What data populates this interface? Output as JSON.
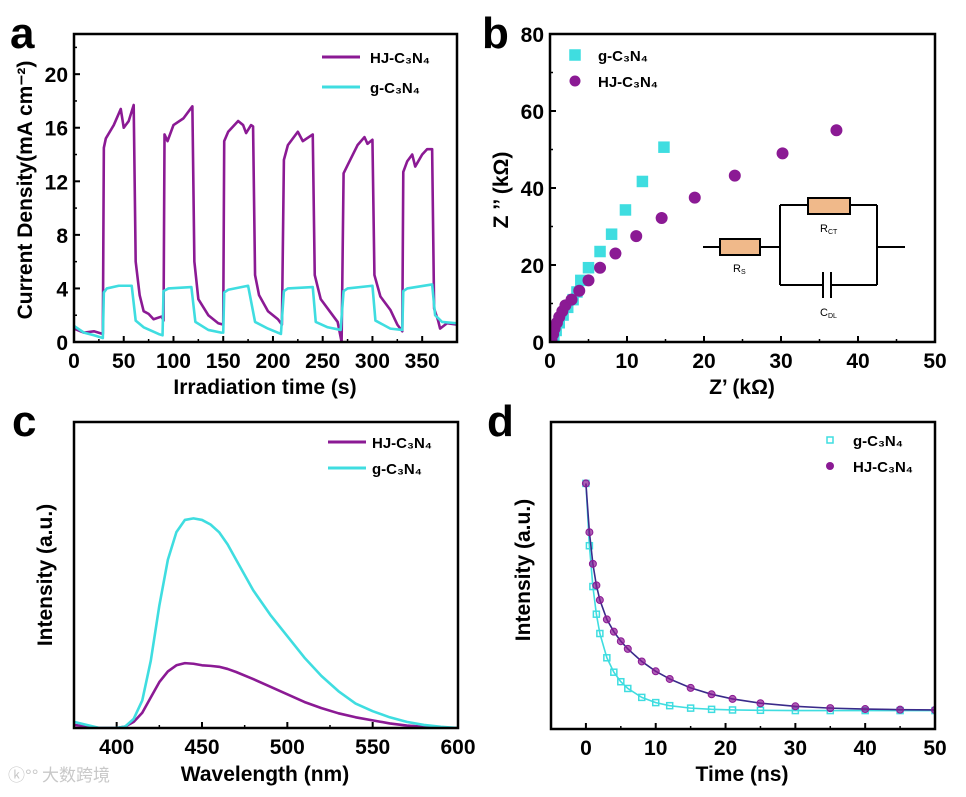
{
  "colors": {
    "hj": "#8b1a94",
    "g": "#3fdde0",
    "resistor": "#f0b98a",
    "fit_hj": "#3a2a8a"
  },
  "watermark": "大数跨境",
  "chart_data": [
    {
      "panel": "a",
      "type": "line",
      "xlabel": "Irradiation time (s)",
      "ylabel": "Current Density(mA cm⁻²)",
      "xlim": [
        0,
        385
      ],
      "ylim": [
        0,
        23
      ],
      "xticks": [
        "0",
        "50",
        "100",
        "150",
        "200",
        "250",
        "300",
        "350"
      ],
      "yticks": [
        "0",
        "4",
        "8",
        "12",
        "16",
        "20"
      ],
      "legend_position": "top-right",
      "series": [
        {
          "name": "HJ-C₃N₄",
          "key": "hj",
          "style": "line",
          "points": [
            [
              0,
              1.0
            ],
            [
              10,
              0.7
            ],
            [
              20,
              0.8
            ],
            [
              29,
              0.6
            ],
            [
              30,
              14.5
            ],
            [
              32,
              15.2
            ],
            [
              40,
              16.2
            ],
            [
              47,
              17.4
            ],
            [
              50,
              16.0
            ],
            [
              55,
              16.5
            ],
            [
              60,
              17.7
            ],
            [
              62,
              6
            ],
            [
              66,
              3.5
            ],
            [
              70,
              2.3
            ],
            [
              75,
              2.1
            ],
            [
              80,
              1.7
            ],
            [
              88,
              1.9
            ],
            [
              90,
              1.6
            ],
            [
              91,
              15.5
            ],
            [
              94,
              15.0
            ],
            [
              100,
              16.2
            ],
            [
              110,
              16.7
            ],
            [
              119,
              17.6
            ],
            [
              121,
              6
            ],
            [
              125,
              3.2
            ],
            [
              135,
              2.0
            ],
            [
              145,
              1.4
            ],
            [
              150,
              1.3
            ],
            [
              151,
              15.0
            ],
            [
              155,
              15.7
            ],
            [
              165,
              16.5
            ],
            [
              170,
              16.2
            ],
            [
              173,
              15.6
            ],
            [
              178,
              16.2
            ],
            [
              180,
              16.1
            ],
            [
              182,
              5
            ],
            [
              186,
              3.5
            ],
            [
              195,
              2.3
            ],
            [
              205,
              1.7
            ],
            [
              209,
              1.3
            ],
            [
              211,
              13.6
            ],
            [
              215,
              14.7
            ],
            [
              225,
              15.7
            ],
            [
              230,
              15.0
            ],
            [
              240,
              15.5
            ],
            [
              242,
              5
            ],
            [
              248,
              3.2
            ],
            [
              258,
              2.2
            ],
            [
              265,
              1.5
            ],
            [
              269,
              0.0
            ],
            [
              271,
              12.6
            ],
            [
              275,
              13.2
            ],
            [
              285,
              14.7
            ],
            [
              292,
              15.3
            ],
            [
              295,
              14.8
            ],
            [
              300,
              15.1
            ],
            [
              302,
              5
            ],
            [
              308,
              3.4
            ],
            [
              318,
              2.4
            ],
            [
              325,
              1.3
            ],
            [
              330,
              0.8
            ],
            [
              331,
              12.7
            ],
            [
              335,
              13.5
            ],
            [
              340,
              14.0
            ],
            [
              343,
              13.1
            ],
            [
              350,
              14.0
            ],
            [
              355,
              14.4
            ],
            [
              360,
              14.4
            ],
            [
              362,
              2.5
            ],
            [
              366,
              1.6
            ],
            [
              368,
              1.0
            ],
            [
              375,
              1.4
            ],
            [
              385,
              1.3
            ]
          ]
        },
        {
          "name": "g-C₃N₄",
          "key": "g",
          "style": "line",
          "points": [
            [
              0,
              1.2
            ],
            [
              10,
              0.7
            ],
            [
              20,
              0.5
            ],
            [
              29,
              0.3
            ],
            [
              30,
              3.7
            ],
            [
              33,
              4.0
            ],
            [
              45,
              4.2
            ],
            [
              58,
              4.2
            ],
            [
              62,
              1.6
            ],
            [
              70,
              1.1
            ],
            [
              85,
              0.6
            ],
            [
              89,
              0.5
            ],
            [
              90,
              3.8
            ],
            [
              95,
              4.0
            ],
            [
              118,
              4.1
            ],
            [
              122,
              1.5
            ],
            [
              135,
              0.9
            ],
            [
              148,
              0.7
            ],
            [
              150,
              0.7
            ],
            [
              151,
              3.7
            ],
            [
              155,
              3.9
            ],
            [
              175,
              4.2
            ],
            [
              182,
              1.5
            ],
            [
              195,
              1.0
            ],
            [
              208,
              0.6
            ],
            [
              211,
              3.8
            ],
            [
              215,
              4.0
            ],
            [
              240,
              4.1
            ],
            [
              243,
              1.5
            ],
            [
              255,
              1.1
            ],
            [
              268,
              0.9
            ],
            [
              271,
              3.8
            ],
            [
              275,
              4.0
            ],
            [
              300,
              4.2
            ],
            [
              303,
              1.6
            ],
            [
              318,
              1.0
            ],
            [
              330,
              0.9
            ],
            [
              331,
              3.8
            ],
            [
              335,
              4.0
            ],
            [
              360,
              4.3
            ],
            [
              363,
              2.0
            ],
            [
              370,
              1.5
            ],
            [
              385,
              1.4
            ]
          ]
        }
      ]
    },
    {
      "panel": "b",
      "type": "scatter",
      "xlabel": "Z’ (kΩ)",
      "ylabel": "Z ’’ (kΩ)",
      "xlim": [
        0,
        50
      ],
      "ylim": [
        0,
        80
      ],
      "xticks": [
        "0",
        "10",
        "20",
        "30",
        "40",
        "50"
      ],
      "yticks": [
        "0",
        "20",
        "40",
        "60",
        "80"
      ],
      "legend_position": "top-left",
      "series": [
        {
          "name": "g-C₃N₄",
          "key": "g",
          "style": "square",
          "points": [
            [
              0.5,
              1
            ],
            [
              0.8,
              3
            ],
            [
              1.2,
              5
            ],
            [
              1.7,
              7
            ],
            [
              2.3,
              9
            ],
            [
              3,
              11
            ],
            [
              3.5,
              13
            ],
            [
              4,
              16
            ],
            [
              5,
              19.3
            ],
            [
              6.5,
              23.5
            ],
            [
              8,
              28
            ],
            [
              9.8,
              34.3
            ],
            [
              12,
              41.7
            ],
            [
              14.8,
              50.6
            ]
          ]
        },
        {
          "name": "HJ-C₃N₄",
          "key": "hj",
          "style": "circle",
          "points": [
            [
              0.2,
              0.5
            ],
            [
              0.4,
              2
            ],
            [
              0.6,
              3.5
            ],
            [
              0.9,
              5
            ],
            [
              1.2,
              6.5
            ],
            [
              1.6,
              8
            ],
            [
              2,
              9.5
            ],
            [
              2.8,
              11
            ],
            [
              3.8,
              13.3
            ],
            [
              5,
              16
            ],
            [
              6.5,
              19.3
            ],
            [
              8.5,
              23
            ],
            [
              11.2,
              27.5
            ],
            [
              14.5,
              32.2
            ],
            [
              18.8,
              37.5
            ],
            [
              24,
              43.2
            ],
            [
              30.2,
              49
            ],
            [
              37.2,
              55
            ]
          ]
        }
      ],
      "inset_circuit": {
        "rs": "R",
        "rs_sub": "S",
        "rct": "R",
        "rct_sub": "CT",
        "cdl": "C",
        "cdl_sub": "DL"
      }
    },
    {
      "panel": "c",
      "type": "line",
      "xlabel": "Wavelength (nm)",
      "ylabel": "Intensity (a.u.)",
      "xlim": [
        375,
        600
      ],
      "ylim": [
        0,
        1
      ],
      "xticks": [
        "400",
        "450",
        "500",
        "550",
        "600"
      ],
      "yticks": [],
      "legend_position": "top-right",
      "series": [
        {
          "name": "HJ-C₃N₄",
          "key": "hj",
          "style": "line",
          "points": [
            [
              375,
              0.01
            ],
            [
              390,
              0
            ],
            [
              400,
              0
            ],
            [
              405,
              0.005
            ],
            [
              410,
              0.02
            ],
            [
              415,
              0.05
            ],
            [
              420,
              0.1
            ],
            [
              425,
              0.15
            ],
            [
              430,
              0.185
            ],
            [
              435,
              0.205
            ],
            [
              440,
              0.212
            ],
            [
              445,
              0.21
            ],
            [
              450,
              0.205
            ],
            [
              455,
              0.203
            ],
            [
              460,
              0.2
            ],
            [
              465,
              0.193
            ],
            [
              470,
              0.183
            ],
            [
              480,
              0.16
            ],
            [
              490,
              0.135
            ],
            [
              500,
              0.11
            ],
            [
              510,
              0.085
            ],
            [
              520,
              0.065
            ],
            [
              530,
              0.048
            ],
            [
              540,
              0.035
            ],
            [
              550,
              0.025
            ],
            [
              560,
              0.015
            ],
            [
              570,
              0.008
            ],
            [
              580,
              0.004
            ],
            [
              590,
              0.001
            ],
            [
              600,
              0
            ]
          ]
        },
        {
          "name": "g-C₃N₄",
          "key": "g",
          "style": "line",
          "points": [
            [
              375,
              0.02
            ],
            [
              390,
              0
            ],
            [
              400,
              0
            ],
            [
              405,
              0.005
            ],
            [
              410,
              0.03
            ],
            [
              415,
              0.09
            ],
            [
              420,
              0.22
            ],
            [
              425,
              0.4
            ],
            [
              430,
              0.55
            ],
            [
              435,
              0.64
            ],
            [
              440,
              0.68
            ],
            [
              445,
              0.685
            ],
            [
              450,
              0.68
            ],
            [
              455,
              0.665
            ],
            [
              460,
              0.64
            ],
            [
              465,
              0.6
            ],
            [
              470,
              0.55
            ],
            [
              480,
              0.45
            ],
            [
              490,
              0.37
            ],
            [
              500,
              0.3
            ],
            [
              510,
              0.23
            ],
            [
              520,
              0.17
            ],
            [
              530,
              0.12
            ],
            [
              540,
              0.08
            ],
            [
              550,
              0.055
            ],
            [
              560,
              0.035
            ],
            [
              570,
              0.02
            ],
            [
              580,
              0.01
            ],
            [
              590,
              0.004
            ],
            [
              600,
              0.0
            ]
          ]
        }
      ]
    },
    {
      "panel": "d",
      "type": "scatter",
      "xlabel": "Time (ns)",
      "ylabel": "Intensity (a.u.)",
      "xlim": [
        -5,
        50
      ],
      "ylim": [
        0,
        1
      ],
      "xticks": [
        "0",
        "10",
        "20",
        "30",
        "40",
        "50"
      ],
      "yticks": [],
      "legend_position": "top-right",
      "series": [
        {
          "name": "g-C₃N₄",
          "key": "g",
          "style": "square-fit",
          "points": [
            [
              0,
              0.8
            ],
            [
              0.5,
              0.597
            ],
            [
              1,
              0.464
            ],
            [
              1.5,
              0.374
            ],
            [
              2,
              0.311
            ],
            [
              3,
              0.232
            ],
            [
              4,
              0.185
            ],
            [
              5,
              0.154
            ],
            [
              6,
              0.132
            ],
            [
              8,
              0.103
            ],
            [
              10,
              0.086
            ],
            [
              12,
              0.076
            ],
            [
              15,
              0.068
            ],
            [
              18,
              0.064
            ],
            [
              21,
              0.062
            ],
            [
              25,
              0.061
            ],
            [
              30,
              0.06
            ],
            [
              35,
              0.06
            ],
            [
              40,
              0.06
            ],
            [
              45,
              0.06
            ],
            [
              50,
              0.06
            ]
          ]
        },
        {
          "name": "HJ-C₃N₄",
          "key": "hj",
          "style": "circle-fit",
          "points": [
            [
              0,
              0.8
            ],
            [
              0.5,
              0.641
            ],
            [
              1,
              0.538
            ],
            [
              1.5,
              0.468
            ],
            [
              2,
              0.42
            ],
            [
              3,
              0.357
            ],
            [
              4,
              0.317
            ],
            [
              5,
              0.286
            ],
            [
              6,
              0.261
            ],
            [
              8,
              0.22
            ],
            [
              10,
              0.188
            ],
            [
              12,
              0.163
            ],
            [
              15,
              0.134
            ],
            [
              18,
              0.113
            ],
            [
              21,
              0.098
            ],
            [
              25,
              0.084
            ],
            [
              30,
              0.074
            ],
            [
              35,
              0.068
            ],
            [
              40,
              0.065
            ],
            [
              45,
              0.063
            ],
            [
              50,
              0.062
            ]
          ]
        }
      ]
    }
  ]
}
